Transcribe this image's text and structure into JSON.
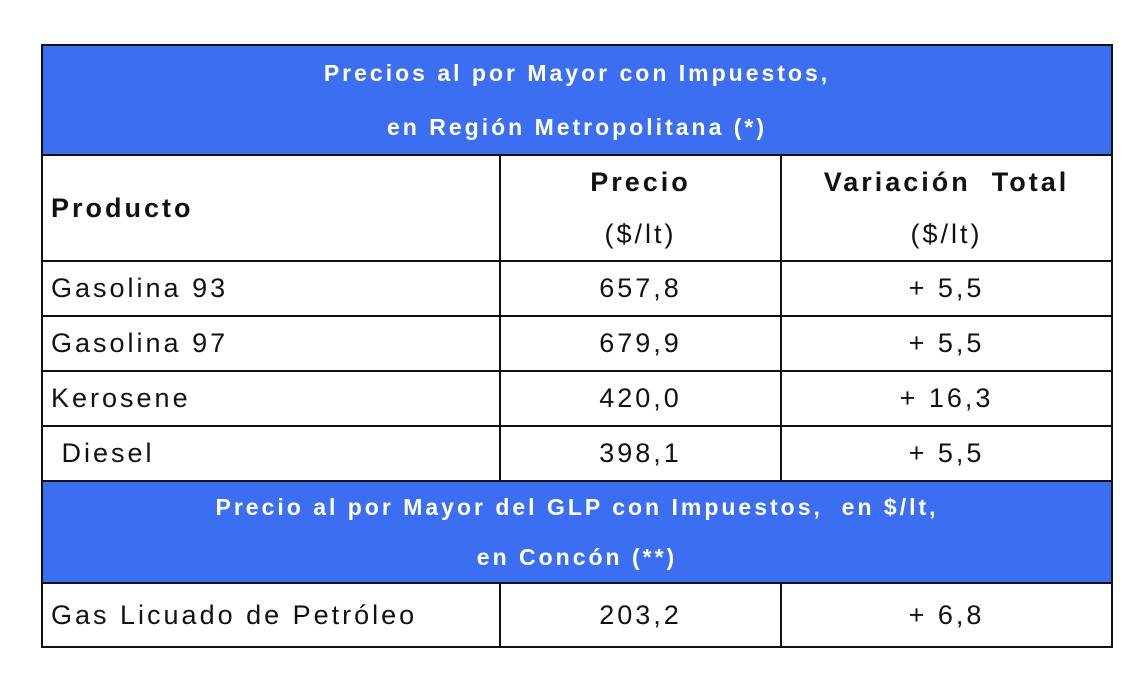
{
  "banner_top": {
    "line1": "Precios al por Mayor con Impuestos,",
    "line2": "en Región Metropolitana (*)"
  },
  "columns": {
    "product": "Producto",
    "price_label": "Precio",
    "price_unit": "($/lt)",
    "variation_label": "Variación  Total",
    "variation_unit": "($/lt)"
  },
  "rows": [
    {
      "product": "Gasolina 93",
      "price": "657,8",
      "variation": "+ 5,5"
    },
    {
      "product": "Gasolina 97",
      "price": "679,9",
      "variation": "+ 5,5"
    },
    {
      "product": "Kerosene",
      "price": "420,0",
      "variation": "+ 16,3"
    },
    {
      "product": " Diesel",
      "price": "398,1",
      "variation": "+ 5,5"
    }
  ],
  "banner_glp": {
    "line1": "Precio al por Mayor del GLP con Impuestos,  en $/lt,",
    "line2": "en Concón (**)"
  },
  "glp_row": {
    "product": "Gas Licuado de Petróleo",
    "price": "203,2",
    "variation": "+ 6,8"
  },
  "colors": {
    "banner_bg": "#3b6ef0",
    "banner_text": "#ffffff",
    "border": "#111111"
  }
}
